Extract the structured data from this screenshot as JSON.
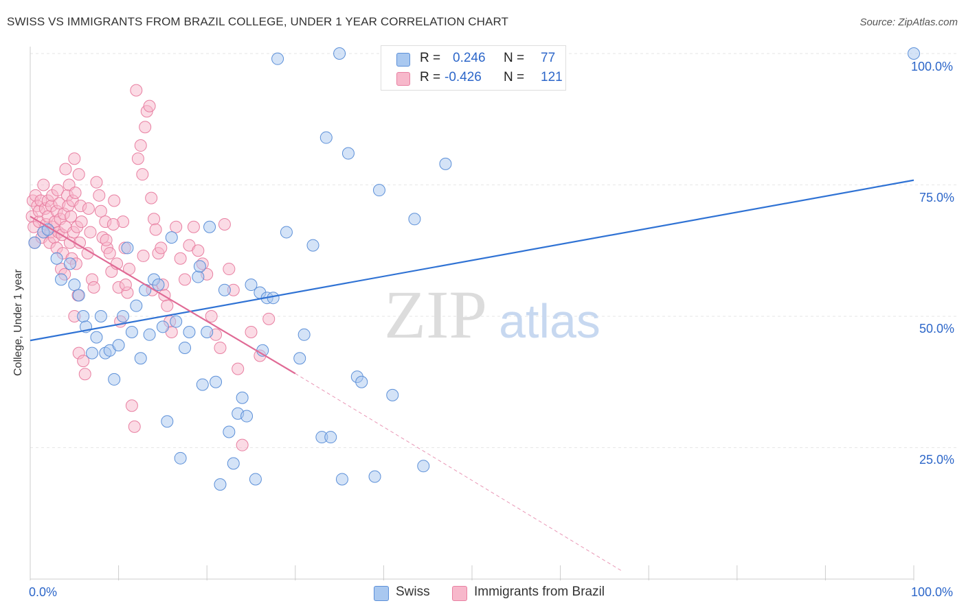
{
  "title": "SWISS VS IMMIGRANTS FROM BRAZIL COLLEGE, UNDER 1 YEAR CORRELATION CHART",
  "source": "Source: ZipAtlas.com",
  "watermark": {
    "zip": "ZIP",
    "atlas": "atlas"
  },
  "colors": {
    "swiss_fill": "#a9c8f0",
    "swiss_stroke": "#5b8fd8",
    "swiss_line": "#2f72d4",
    "brazil_fill": "#f7b8cb",
    "brazil_stroke": "#e87fa1",
    "brazil_line": "#e06a95",
    "axis_label": "#2c66c9",
    "grid": "#e6e6e6"
  },
  "legend": {
    "rows": [
      {
        "r_label": "R =",
        "r_value": "0.246",
        "n_label": "N =",
        "n_value": "77"
      },
      {
        "r_label": "R =",
        "r_value": "-0.426",
        "n_label": "N =",
        "n_value": "121"
      }
    ]
  },
  "bottom_legend": {
    "swiss": "Swiss",
    "brazil": "Immigrants from Brazil"
  },
  "axes": {
    "x_min_label": "0.0%",
    "x_max_label": "100.0%",
    "y_title": "College, Under 1 year",
    "y_ticks": [
      "100.0%",
      "75.0%",
      "50.0%",
      "25.0%"
    ]
  },
  "chart_data": {
    "type": "scatter",
    "title": "SWISS VS IMMIGRANTS FROM BRAZIL COLLEGE, UNDER 1 YEAR CORRELATION CHART",
    "xlabel": "",
    "ylabel": "College, Under 1 year",
    "xlim": [
      0,
      100
    ],
    "ylim": [
      0,
      100
    ],
    "y_ticks": [
      25,
      50,
      75,
      100
    ],
    "grid": true,
    "legend_position": "top-center",
    "series": [
      {
        "name": "Swiss",
        "r": 0.246,
        "n": 77,
        "trend": {
          "x": [
            0,
            100
          ],
          "y": [
            45.4,
            75.9
          ]
        },
        "points": [
          [
            0.5,
            64
          ],
          [
            1.5,
            66
          ],
          [
            2,
            66.5
          ],
          [
            3,
            61
          ],
          [
            3.5,
            57
          ],
          [
            4.5,
            60
          ],
          [
            5,
            56
          ],
          [
            5.5,
            54
          ],
          [
            6,
            50
          ],
          [
            6.3,
            48
          ],
          [
            7,
            43
          ],
          [
            7.5,
            46
          ],
          [
            8,
            50
          ],
          [
            8.5,
            43
          ],
          [
            9,
            43.5
          ],
          [
            9.5,
            38
          ],
          [
            10,
            44.5
          ],
          [
            10.5,
            50
          ],
          [
            11,
            63
          ],
          [
            11.5,
            47
          ],
          [
            12,
            52
          ],
          [
            12.5,
            42
          ],
          [
            13,
            55
          ],
          [
            13.5,
            46.5
          ],
          [
            14,
            57
          ],
          [
            14.5,
            56
          ],
          [
            15,
            48
          ],
          [
            15.5,
            30
          ],
          [
            16,
            65
          ],
          [
            16.5,
            49
          ],
          [
            17,
            23
          ],
          [
            17.5,
            44
          ],
          [
            18,
            47
          ],
          [
            19,
            57.5
          ],
          [
            19.2,
            59.5
          ],
          [
            19.5,
            37
          ],
          [
            20,
            47
          ],
          [
            20.3,
            67
          ],
          [
            21,
            37.5
          ],
          [
            21.5,
            18
          ],
          [
            22,
            55
          ],
          [
            22.5,
            28
          ],
          [
            23,
            22
          ],
          [
            23.5,
            31.5
          ],
          [
            24,
            34.5
          ],
          [
            24.5,
            31
          ],
          [
            25,
            56
          ],
          [
            25.5,
            19
          ],
          [
            26,
            54.5
          ],
          [
            26.3,
            43.5
          ],
          [
            26.8,
            53.5
          ],
          [
            27.5,
            53.5
          ],
          [
            28,
            99
          ],
          [
            29,
            66
          ],
          [
            30.5,
            42
          ],
          [
            31,
            46.5
          ],
          [
            32,
            63.5
          ],
          [
            33,
            27
          ],
          [
            33.5,
            84
          ],
          [
            34,
            27
          ],
          [
            35,
            100
          ],
          [
            35.3,
            19
          ],
          [
            36,
            81
          ],
          [
            37,
            38.5
          ],
          [
            37.5,
            37.5
          ],
          [
            39,
            19.5
          ],
          [
            39.5,
            74
          ],
          [
            41,
            35
          ],
          [
            42.5,
            99
          ],
          [
            43.5,
            68.5
          ],
          [
            44.5,
            21.5
          ],
          [
            47,
            79
          ],
          [
            50,
            99.5
          ],
          [
            51,
            99.5
          ],
          [
            100,
            100
          ]
        ]
      },
      {
        "name": "Immigrants from Brazil",
        "r": -0.426,
        "n": 121,
        "trend": {
          "x": [
            0,
            30
          ],
          "y": [
            69,
            39.1
          ]
        },
        "trend_dashed": {
          "x": [
            30,
            67
          ],
          "y": [
            39.1,
            1.5
          ]
        },
        "points": [
          [
            0.2,
            69
          ],
          [
            0.3,
            72
          ],
          [
            0.4,
            67
          ],
          [
            0.5,
            64
          ],
          [
            0.6,
            73
          ],
          [
            0.8,
            71
          ],
          [
            1,
            68
          ],
          [
            1,
            70
          ],
          [
            1.2,
            72
          ],
          [
            1.3,
            65
          ],
          [
            1.5,
            75
          ],
          [
            1.5,
            66
          ],
          [
            1.7,
            70.5
          ],
          [
            1.8,
            67.5
          ],
          [
            2,
            69
          ],
          [
            2,
            72
          ],
          [
            2.2,
            64
          ],
          [
            2.3,
            66
          ],
          [
            2.4,
            71
          ],
          [
            2.5,
            73
          ],
          [
            2.6,
            67
          ],
          [
            2.7,
            65
          ],
          [
            2.8,
            68
          ],
          [
            3,
            63
          ],
          [
            3,
            70
          ],
          [
            3.1,
            74
          ],
          [
            3.2,
            66
          ],
          [
            3.3,
            71.5
          ],
          [
            3.4,
            68.5
          ],
          [
            3.5,
            59
          ],
          [
            3.6,
            65.5
          ],
          [
            3.7,
            62
          ],
          [
            3.8,
            69.5
          ],
          [
            3.9,
            58
          ],
          [
            4,
            67
          ],
          [
            4,
            78
          ],
          [
            4.2,
            73
          ],
          [
            4.3,
            71
          ],
          [
            4.4,
            75
          ],
          [
            4.5,
            64
          ],
          [
            4.6,
            69
          ],
          [
            4.7,
            61
          ],
          [
            4.8,
            72
          ],
          [
            4.9,
            66
          ],
          [
            5,
            50
          ],
          [
            5,
            80
          ],
          [
            5.1,
            73.5
          ],
          [
            5.2,
            60
          ],
          [
            5.3,
            67
          ],
          [
            5.4,
            54
          ],
          [
            5.5,
            43
          ],
          [
            5.5,
            77
          ],
          [
            5.6,
            64
          ],
          [
            5.7,
            71
          ],
          [
            5.8,
            68
          ],
          [
            6,
            41.5
          ],
          [
            6.2,
            39
          ],
          [
            6.5,
            62
          ],
          [
            6.8,
            66
          ],
          [
            7,
            57
          ],
          [
            7.2,
            55.5
          ],
          [
            7.5,
            75.5
          ],
          [
            7.8,
            73
          ],
          [
            8,
            70
          ],
          [
            8.2,
            65
          ],
          [
            8.5,
            68
          ],
          [
            8.7,
            63
          ],
          [
            9,
            62
          ],
          [
            9.2,
            58.5
          ],
          [
            9.5,
            72
          ],
          [
            9.8,
            60
          ],
          [
            10,
            55.5
          ],
          [
            10.2,
            49
          ],
          [
            10.5,
            68
          ],
          [
            10.7,
            63
          ],
          [
            11,
            54.5
          ],
          [
            11.2,
            59
          ],
          [
            11.5,
            33
          ],
          [
            11.8,
            29
          ],
          [
            12,
            93
          ],
          [
            12.2,
            80
          ],
          [
            12.5,
            82.5
          ],
          [
            12.7,
            77
          ],
          [
            13,
            86
          ],
          [
            13.2,
            89
          ],
          [
            13.5,
            90
          ],
          [
            13.7,
            72.5
          ],
          [
            14,
            68.5
          ],
          [
            14.2,
            66.5
          ],
          [
            14.5,
            62
          ],
          [
            14.8,
            63
          ],
          [
            15,
            56
          ],
          [
            15.2,
            54
          ],
          [
            15.5,
            52
          ],
          [
            15.8,
            49
          ],
          [
            16,
            47
          ],
          [
            16.5,
            67
          ],
          [
            17,
            61
          ],
          [
            17.5,
            57
          ],
          [
            18,
            63.5
          ],
          [
            18.5,
            67
          ],
          [
            19,
            62.5
          ],
          [
            19.5,
            60
          ],
          [
            20,
            58
          ],
          [
            20.5,
            50
          ],
          [
            21,
            46.5
          ],
          [
            21.5,
            44
          ],
          [
            22,
            67.5
          ],
          [
            22.5,
            59
          ],
          [
            23,
            55
          ],
          [
            23.5,
            40
          ],
          [
            24,
            25.5
          ],
          [
            25,
            47
          ],
          [
            26,
            42.5
          ],
          [
            27,
            49.5
          ],
          [
            8.6,
            64.5
          ],
          [
            9.4,
            67.5
          ],
          [
            10.8,
            56
          ],
          [
            12.8,
            61.5
          ],
          [
            13.8,
            55
          ],
          [
            6.6,
            70.5
          ]
        ]
      }
    ]
  }
}
